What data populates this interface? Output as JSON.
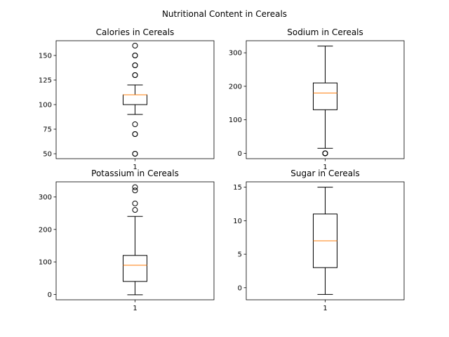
{
  "suptitle": "Nutritional Content in Cereals",
  "median_color": "#ff7f0e",
  "chart_data": [
    {
      "type": "box",
      "title": "Calories in Cereals",
      "xlabel": "",
      "ylabel": "",
      "categories": [
        "1"
      ],
      "ylim": [
        45,
        165
      ],
      "yticks": [
        50,
        75,
        100,
        125,
        150
      ],
      "box": {
        "q1": 100,
        "median": 110,
        "q3": 110,
        "whisker_low": 90,
        "whisker_high": 120
      },
      "fliers": [
        50,
        50,
        70,
        70,
        80,
        130,
        130,
        140,
        140,
        150,
        150,
        160
      ]
    },
    {
      "type": "box",
      "title": "Sodium in Cereals",
      "xlabel": "",
      "ylabel": "",
      "categories": [
        "1"
      ],
      "ylim": [
        -16,
        336
      ],
      "yticks": [
        0,
        100,
        200,
        300
      ],
      "box": {
        "q1": 130,
        "median": 180,
        "q3": 210,
        "whisker_low": 15,
        "whisker_high": 320
      },
      "fliers": [
        0,
        0,
        0,
        0
      ]
    },
    {
      "type": "box",
      "title": "Potassium in Cereals",
      "xlabel": "",
      "ylabel": "",
      "categories": [
        "1"
      ],
      "ylim": [
        -16.5,
        346.5
      ],
      "yticks": [
        0,
        100,
        200,
        300
      ],
      "box": {
        "q1": 40,
        "median": 90,
        "q3": 120,
        "whisker_low": -1,
        "whisker_high": 240
      },
      "fliers": [
        260,
        280,
        320,
        330
      ]
    },
    {
      "type": "box",
      "title": "Sugar in Cereals",
      "xlabel": "",
      "ylabel": "",
      "categories": [
        "1"
      ],
      "ylim": [
        -1.8,
        15.8
      ],
      "yticks": [
        0,
        5,
        10,
        15
      ],
      "box": {
        "q1": 3,
        "median": 7,
        "q3": 11,
        "whisker_low": -1,
        "whisker_high": 15
      },
      "fliers": []
    }
  ]
}
